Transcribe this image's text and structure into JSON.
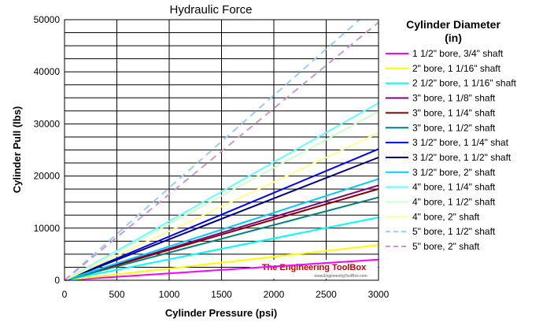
{
  "chart_data": {
    "type": "line",
    "title": "Hydraulic Force",
    "xlabel": "Cylinder Pressure (psi)",
    "ylabel": "Cylinder Pull (lbs)",
    "xlim": [
      0,
      3000
    ],
    "ylim": [
      0,
      50000
    ],
    "x_ticks": [
      0,
      500,
      1000,
      1500,
      2000,
      2500,
      3000
    ],
    "y_ticks": [
      0,
      10000,
      20000,
      30000,
      40000,
      50000
    ],
    "grid": true,
    "legend_position": "right",
    "legend_title_line1": "Cylinder Diameter",
    "legend_title_line2": "(in)",
    "watermark_title": "The Engineering ToolBox",
    "watermark_url": "www.EngineeringToolBox.com",
    "series": [
      {
        "name": "1 1/2\" bore, 3/4\" shaft",
        "color": "#ff00ff",
        "dash": "solid",
        "x": [
          0,
          3000
        ],
        "y": [
          0,
          3976
        ]
      },
      {
        "name": "2\" bore, 1 1/16\" shaft",
        "color": "#ffff00",
        "dash": "solid",
        "x": [
          0,
          3000
        ],
        "y": [
          0,
          6764
        ]
      },
      {
        "name": "2 1/2\" bore, 1 1/16\" shaft",
        "color": "#00ffff",
        "dash": "solid",
        "x": [
          0,
          3000
        ],
        "y": [
          0,
          12065
        ]
      },
      {
        "name": "3\" bore, 1 1/8\" shaft",
        "color": "#800080",
        "dash": "solid",
        "x": [
          0,
          3000
        ],
        "y": [
          0,
          18224
        ]
      },
      {
        "name": "3\" bore, 1 1/4\" shaft",
        "color": "#800000",
        "dash": "solid",
        "x": [
          0,
          3000
        ],
        "y": [
          0,
          17525
        ]
      },
      {
        "name": "3\" bore, 1 1/2\" shaft",
        "color": "#008080",
        "dash": "solid",
        "x": [
          0,
          3000
        ],
        "y": [
          0,
          15904
        ]
      },
      {
        "name": "3 1/2\" bore, 1 1/4\" shat",
        "color": "#0000ff",
        "dash": "solid",
        "x": [
          0,
          3000
        ],
        "y": [
          0,
          25182
        ]
      },
      {
        "name": "3 1/2\" bore, 1 1/2\" shaft",
        "color": "#000080",
        "dash": "solid",
        "x": [
          0,
          3000
        ],
        "y": [
          0,
          23562
        ]
      },
      {
        "name": "3 1/2\" bore, 2\" shaft",
        "color": "#00ccff",
        "dash": "solid",
        "x": [
          0,
          3000
        ],
        "y": [
          0,
          19439
        ]
      },
      {
        "name": "4\" bore, 1 1/4\" shaft",
        "color": "#66ffff",
        "dash": "solid",
        "x": [
          0,
          3000
        ],
        "y": [
          0,
          34017
        ]
      },
      {
        "name": "4\" bore, 1 1/2\" shaft",
        "color": "#ccffcc",
        "dash": "solid",
        "x": [
          0,
          3000
        ],
        "y": [
          0,
          32398
        ]
      },
      {
        "name": "4\" bore, 2\" shaft",
        "color": "#ffff99",
        "dash": "solid",
        "x": [
          0,
          3000
        ],
        "y": [
          0,
          28274
        ]
      },
      {
        "name": "5\" bore, 1 1/2\" shaft",
        "color": "#99ccff",
        "dash": "dashed",
        "x": [
          0,
          2818
        ],
        "y": [
          0,
          50000
        ]
      },
      {
        "name": "5\" bore, 2\" shaft",
        "color": "#cc99cc",
        "dash": "dashed",
        "x": [
          0,
          3000
        ],
        "y": [
          0,
          49480
        ]
      }
    ]
  }
}
